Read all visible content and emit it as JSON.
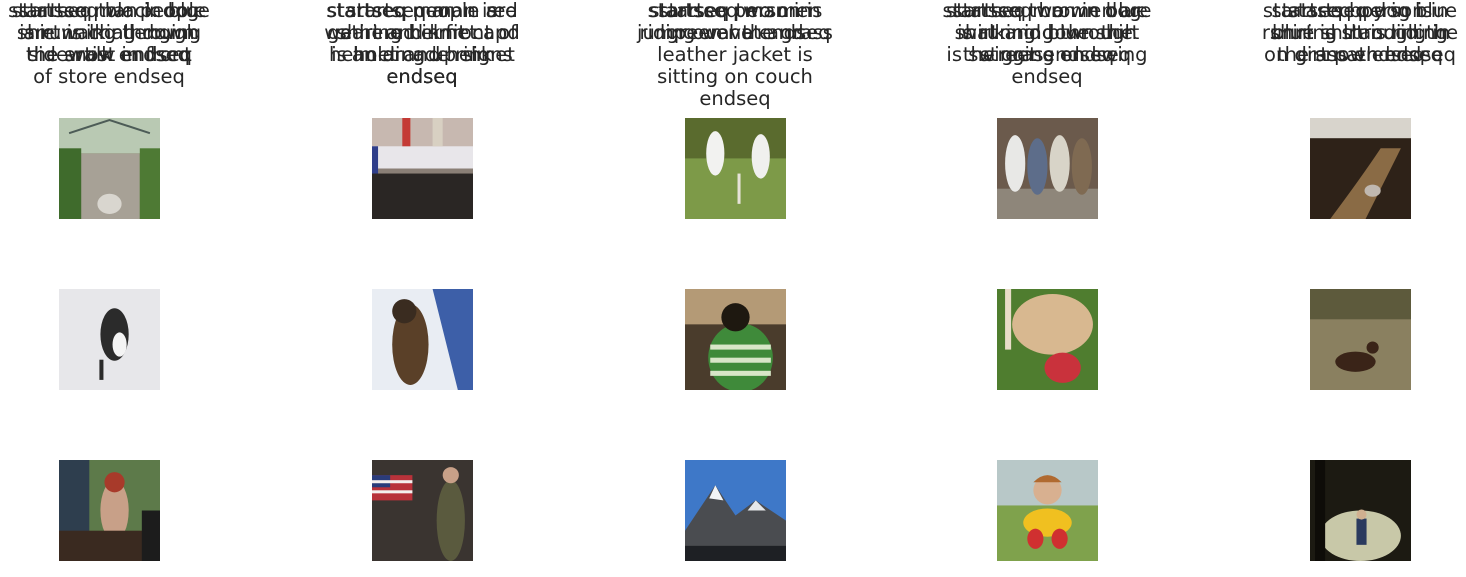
{
  "grid": {
    "rows": [
      [
        {
          "lines": [
            "startseq two people",
            "are walking down",
            "sidewalk endseq"
          ],
          "image": "garden-walkway-dog"
        },
        {
          "lines": [
            "startseq people are",
            "gathered in front of",
            "an arcade rink",
            "endseq"
          ],
          "image": "crowd-banner-street"
        },
        {
          "lines": [
            "startseq two men",
            "jump over the grass"
          ],
          "image": "cricket-players"
        },
        {
          "lines": [
            "startseq two men are",
            "walking down the",
            "street endseq"
          ],
          "image": "group-of-young-men"
        },
        {
          "lines": [
            "startseq person in",
            "blue shirt is riding",
            "on dirt path endseq"
          ],
          "image": "biker-on-dirt-trail"
        }
      ],
      [
        {
          "lines": [
            "startseq black dog",
            "is running through",
            "the snow endseq"
          ],
          "image": "dog-jumping-in-snow"
        },
        {
          "lines": [
            "startseq man is",
            "wearing helmet and",
            "helmet and helmet",
            "endseq"
          ],
          "image": "snowboarder-helmet"
        },
        {
          "lines": [
            "startseq man in",
            "green hat and",
            "leather jacket is",
            "sitting on couch",
            "endseq"
          ],
          "image": "man-green-striped-shirt"
        },
        {
          "lines": [
            "startseq brown dog",
            "is running through",
            "the grass endseq"
          ],
          "image": "dog-with-red-ball"
        },
        {
          "lines": [
            "startseq dog is",
            "running through the",
            "grass endseq"
          ],
          "image": "dog-in-field"
        }
      ],
      [
        {
          "lines": [
            "startseq man in blue",
            "shirt is challenging",
            "the artist in front",
            "of store endseq"
          ],
          "image": "woman-dj-turntables"
        },
        {
          "lines": [
            "startseq man in red",
            "shirt and knit cap",
            "is holding up signs",
            "endseq"
          ],
          "image": "parade-flags-soldier"
        },
        {
          "lines": [
            "startseq person is",
            "riding wave endseq"
          ],
          "image": "mountain-peak-sky"
        },
        {
          "lines": [
            "startseq man in blue",
            "shirt and blue shirt",
            "is swinging on swing",
            "endseq"
          ],
          "image": "child-on-swing"
        },
        {
          "lines": [
            "startseq boy in blue",
            "shirt is standing in",
            "the snow endseq"
          ],
          "image": "person-under-tree-snow"
        }
      ]
    ]
  }
}
